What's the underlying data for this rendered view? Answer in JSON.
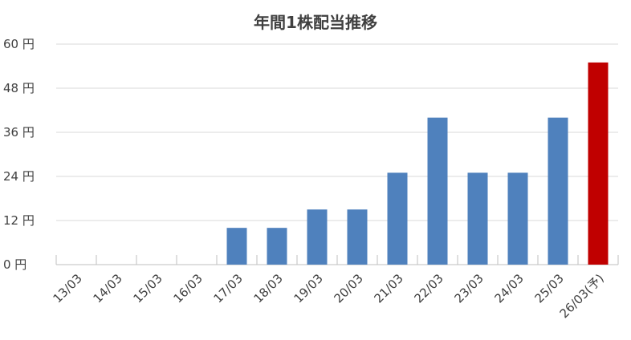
{
  "chart_data": {
    "type": "bar",
    "title": "年間1株配当推移",
    "categories": [
      "13/03",
      "14/03",
      "15/03",
      "16/03",
      "17/03",
      "18/03",
      "19/03",
      "20/03",
      "21/03",
      "22/03",
      "23/03",
      "24/03",
      "25/03",
      "26/03(予)"
    ],
    "values": [
      0,
      0,
      0,
      0,
      10,
      10,
      15,
      15,
      25,
      40,
      25,
      25,
      40,
      55
    ],
    "ylim": [
      0,
      60
    ],
    "yticks": [
      0,
      12,
      24,
      36,
      48,
      60
    ],
    "ytick_labels": [
      "0 円",
      "12 円",
      "24 円",
      "36 円",
      "48 円",
      "60 円"
    ],
    "xlabel": "",
    "ylabel": "",
    "grid": true,
    "colors": {
      "bar": "#4f81bd",
      "forecast_bar": "#c00000"
    },
    "forecast_index": 13
  }
}
